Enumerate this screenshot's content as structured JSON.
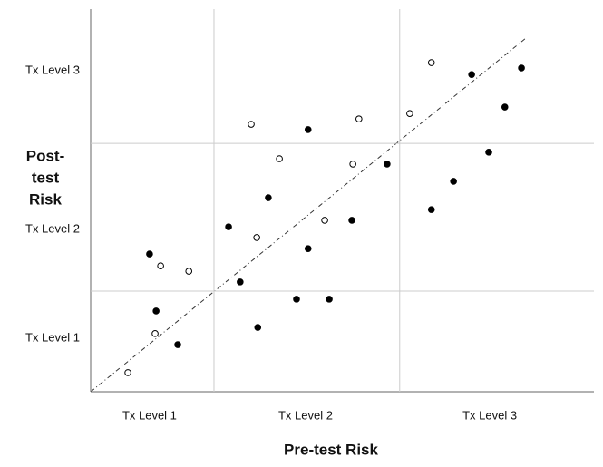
{
  "chart_data": {
    "type": "scatter",
    "x_label": "Pre-test  Risk",
    "y_label_lines": [
      "Post-",
      "test",
      "Risk"
    ],
    "xlim": [
      0,
      100
    ],
    "ylim": [
      0,
      100
    ],
    "xticks": [
      {
        "value": 11.7,
        "label": "Tx Level 1"
      },
      {
        "value": 42.7,
        "label": "Tx Level 2"
      },
      {
        "value": 79.3,
        "label": "Tx Level 3"
      }
    ],
    "yticks": [
      {
        "value": 14.0,
        "label": "Tx Level 1"
      },
      {
        "value": 42.4,
        "label": "Tx Level 2"
      },
      {
        "value": 83.9,
        "label": "Tx Level 3"
      }
    ],
    "xgrid": [
      24.5,
      61.4
    ],
    "ygrid": [
      26.3,
      64.9
    ],
    "series": [
      {
        "marker": "filled",
        "color": "#000000",
        "x": [
          11.7,
          13.0,
          17.3,
          27.4,
          29.7,
          33.2,
          35.3,
          40.9,
          43.2,
          43.2,
          47.4,
          51.9,
          58.9,
          67.7,
          72.1,
          79.1,
          75.7,
          82.3,
          85.6
        ],
        "values": [
          36.0,
          21.1,
          12.3,
          43.1,
          28.7,
          16.8,
          50.7,
          24.2,
          68.5,
          37.4,
          24.2,
          44.8,
          59.5,
          47.6,
          55.0,
          62.6,
          82.9,
          74.4,
          84.6
        ]
      },
      {
        "marker": "open",
        "color": "#000000",
        "x": [
          7.4,
          12.8,
          13.9,
          19.5,
          31.9,
          33.0,
          37.5,
          46.5,
          52.1,
          53.3,
          63.4,
          67.7
        ],
        "values": [
          5.0,
          15.2,
          32.9,
          31.5,
          69.9,
          40.3,
          60.9,
          44.8,
          59.5,
          71.3,
          72.7,
          86.0
        ]
      }
    ]
  }
}
